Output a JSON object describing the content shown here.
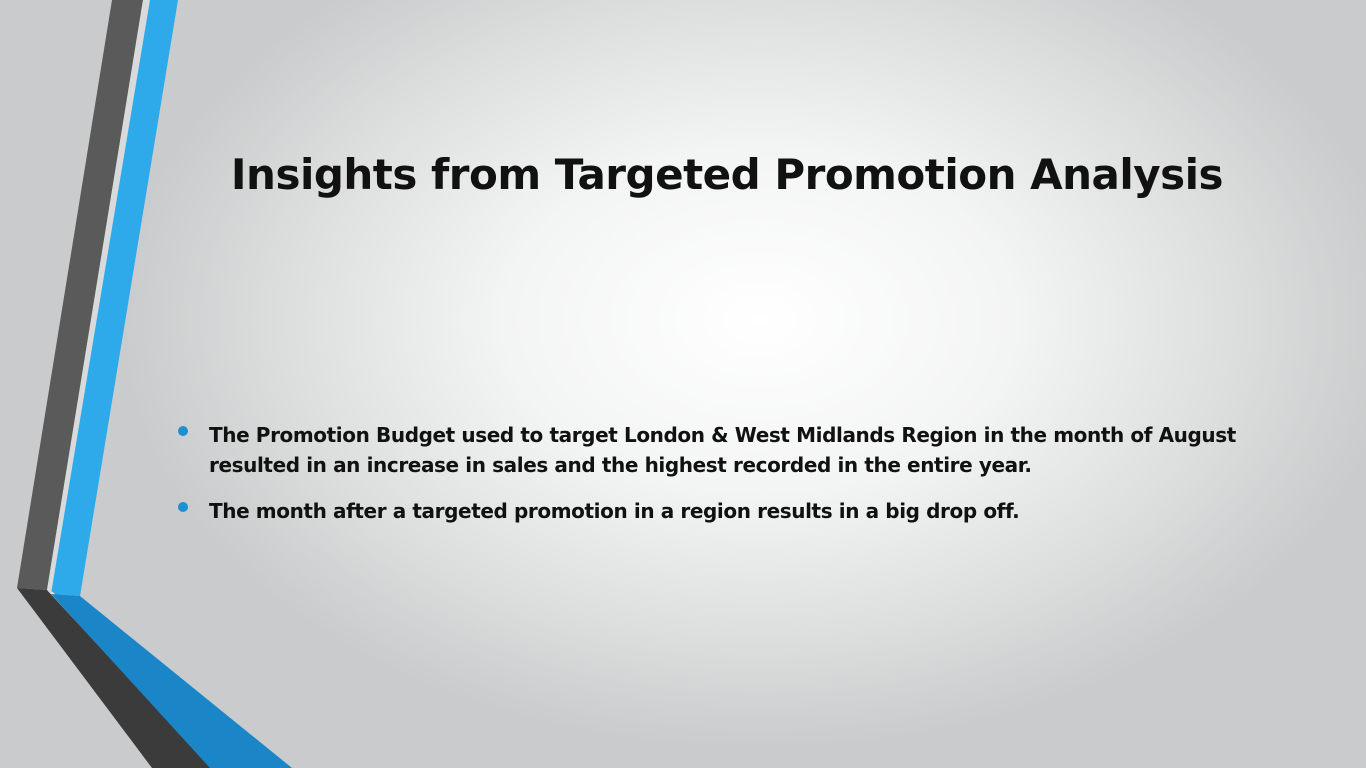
{
  "slide": {
    "title": "Insights from Targeted Promotion Analysis",
    "bullets": [
      "The Promotion Budget used to target London & West Midlands Region in the month of August resulted in an increase in sales and the highest recorded in the entire year.",
      "The month after a  targeted promotion in a region results in a big drop off."
    ]
  },
  "colors": {
    "accent_blue": "#2ea9ea",
    "accent_blue_dark": "#1a86c8",
    "stripe_gray": "#595959",
    "stripe_gray_dark": "#3a3a3a",
    "bullet": "#1e8fd3",
    "text": "#111111"
  }
}
